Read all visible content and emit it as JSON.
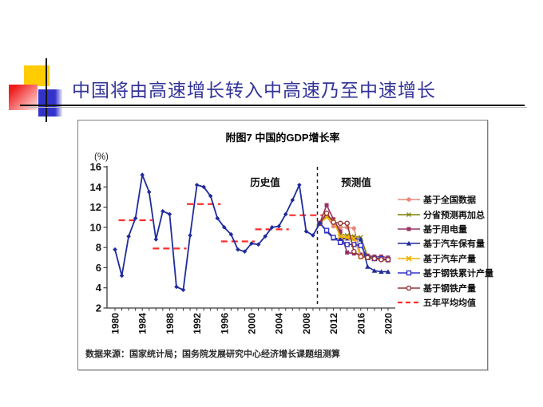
{
  "slide": {
    "title": "中国将由高速增长转入中高速乃至中速增长"
  },
  "chart": {
    "title": "附图7 中国的GDP增长率",
    "y_axis_label": "(%)",
    "y_ticks": [
      16,
      14,
      12,
      10,
      8,
      6,
      4,
      2
    ],
    "x_ticks": [
      1980,
      1984,
      1988,
      1992,
      1996,
      2000,
      2004,
      2008,
      2012,
      2016,
      2020
    ],
    "annotations": {
      "historical": "历史值",
      "forecast": "预测值"
    },
    "source_note": "数据来源：国家统计局；国务院发展研究中心经济增长课题组测算"
  },
  "chart_data": {
    "type": "line",
    "title": "附图7 中国的GDP增长率",
    "xlabel": "",
    "ylabel": "(%)",
    "ylim": [
      2,
      16
    ],
    "xlim": [
      1979,
      2021
    ],
    "grid": false,
    "legend_position": "right",
    "separator_year": 2010,
    "historical": {
      "name": "GDP增长率（历史值）",
      "color": "#1F2B9B",
      "marker": "diamond",
      "x": [
        1980,
        1981,
        1982,
        1983,
        1984,
        1985,
        1986,
        1987,
        1988,
        1989,
        1990,
        1991,
        1992,
        1993,
        1994,
        1995,
        1996,
        1997,
        1998,
        1999,
        2000,
        2001,
        2002,
        2003,
        2004,
        2005,
        2006,
        2007,
        2008,
        2009,
        2010
      ],
      "y": [
        7.8,
        5.2,
        9.1,
        10.9,
        15.2,
        13.5,
        8.8,
        11.6,
        11.3,
        4.1,
        3.8,
        9.2,
        14.2,
        14.0,
        13.1,
        10.9,
        10.0,
        9.3,
        7.8,
        7.6,
        8.4,
        8.3,
        9.1,
        10.0,
        10.1,
        11.3,
        12.7,
        14.2,
        9.6,
        9.2,
        10.4
      ]
    },
    "five_year_averages": {
      "name": "五年平均均值",
      "color": "#FF2D2D",
      "segments": [
        {
          "start": 1981,
          "end": 1985,
          "value": 10.7
        },
        {
          "start": 1986,
          "end": 1990,
          "value": 7.9
        },
        {
          "start": 1991,
          "end": 1995,
          "value": 12.3
        },
        {
          "start": 1996,
          "end": 2000,
          "value": 8.6
        },
        {
          "start": 2001,
          "end": 2005,
          "value": 9.8
        },
        {
          "start": 2006,
          "end": 2010,
          "value": 11.2
        }
      ]
    },
    "forecast_x": [
      2010,
      2011,
      2012,
      2013,
      2014,
      2015,
      2016,
      2017,
      2018,
      2019,
      2020
    ],
    "forecast_series": [
      {
        "name": "基于全国数据",
        "color": "#E8887C",
        "marker": "circle-filled",
        "y": [
          10.4,
          11.1,
          10.1,
          10.0,
          10.0,
          9.9,
          7.2,
          7.0,
          6.9,
          6.8,
          6.7
        ]
      },
      {
        "name": "分省预测再加总",
        "color": "#7F7F00",
        "marker": "x-thin",
        "y": [
          10.4,
          11.2,
          10.6,
          9.3,
          9.2,
          9.1,
          9.0,
          7.1,
          7.0,
          6.9,
          6.8
        ]
      },
      {
        "name": "基于用电量",
        "color": "#993366",
        "marker": "square-filled",
        "y": [
          10.4,
          12.2,
          10.8,
          9.6,
          7.5,
          7.4,
          7.3,
          7.2,
          7.1,
          7.1,
          7.0
        ]
      },
      {
        "name": "基于汽车保有量",
        "color": "#1F2B9B",
        "marker": "triangle-filled",
        "y": [
          10.4,
          9.6,
          8.9,
          8.9,
          8.9,
          8.9,
          8.8,
          6.1,
          5.7,
          5.6,
          5.6
        ]
      },
      {
        "name": "基于汽车产量",
        "color": "#F0B400",
        "marker": "x-thick",
        "y": [
          10.4,
          11.0,
          10.6,
          9.1,
          9.0,
          8.9,
          7.1,
          7.0,
          6.9,
          6.9,
          6.8
        ]
      },
      {
        "name": "基于钢铁累计产量",
        "color": "#3333CC",
        "marker": "square-open",
        "y": [
          10.4,
          9.7,
          9.0,
          8.5,
          8.3,
          8.3,
          8.2,
          7.0,
          6.9,
          6.9,
          6.8
        ]
      },
      {
        "name": "基于钢铁产量",
        "color": "#953735",
        "marker": "circle-open",
        "y": [
          10.4,
          11.4,
          10.5,
          10.4,
          10.4,
          7.6,
          7.1,
          7.0,
          6.9,
          6.8,
          6.8
        ]
      }
    ],
    "legend_extra": {
      "label": "五年平均均值",
      "color": "#FF2D2D",
      "marker": "dash"
    }
  },
  "colors": {
    "title_text": "#333399",
    "deco_yellow": "#FFCC00",
    "deco_red": "#EE1C1C",
    "deco_blue": "#3333CC",
    "axis": "#3a3a3a",
    "separator": "#222222"
  }
}
